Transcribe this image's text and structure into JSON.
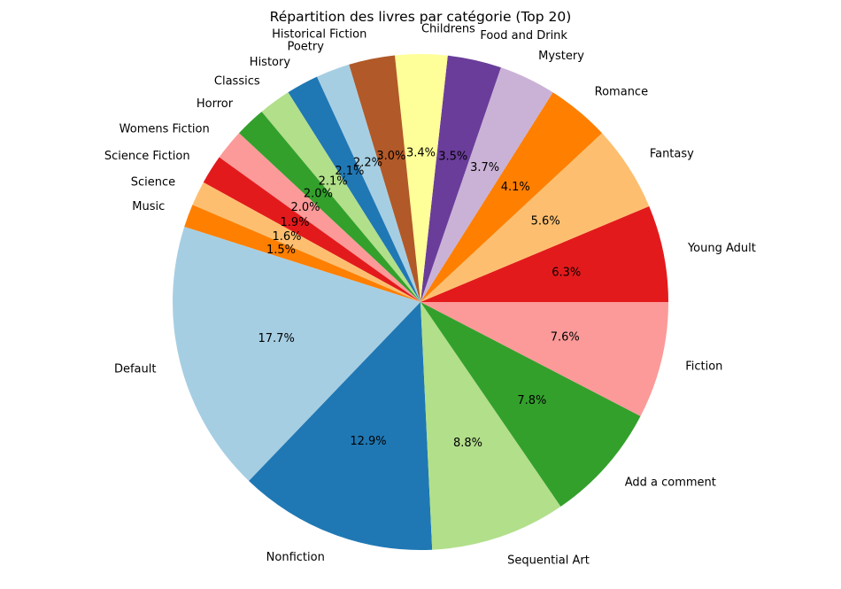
{
  "chart_data": {
    "type": "pie",
    "title": "Répartition des livres par catégorie (Top 20)",
    "start_angle_deg": 0,
    "direction": "counterclockwise",
    "slices": [
      {
        "label": "Young Adult",
        "value": 6.3,
        "pct_label": "6.3%",
        "color": "#e31a1c"
      },
      {
        "label": "Fantasy",
        "value": 5.6,
        "pct_label": "5.6%",
        "color": "#fdbf6f"
      },
      {
        "label": "Romance",
        "value": 4.1,
        "pct_label": "4.1%",
        "color": "#ff7f00"
      },
      {
        "label": "Mystery",
        "value": 3.7,
        "pct_label": "3.7%",
        "color": "#cab2d6"
      },
      {
        "label": "Food and Drink",
        "value": 3.5,
        "pct_label": "3.5%",
        "color": "#6a3d9a"
      },
      {
        "label": "Childrens",
        "value": 3.4,
        "pct_label": "3.4%",
        "color": "#ffff99"
      },
      {
        "label": "Historical Fiction",
        "value": 3.0,
        "pct_label": "3.0%",
        "color": "#b15928"
      },
      {
        "label": "Poetry",
        "value": 2.2,
        "pct_label": "2.2%",
        "color": "#a6cee3"
      },
      {
        "label": "History",
        "value": 2.1,
        "pct_label": "2.1%",
        "color": "#1f78b4"
      },
      {
        "label": "Classics",
        "value": 2.1,
        "pct_label": "2.1%",
        "color": "#b2df8a"
      },
      {
        "label": "Horror",
        "value": 2.0,
        "pct_label": "2.0%",
        "color": "#33a02c"
      },
      {
        "label": "Womens Fiction",
        "value": 2.0,
        "pct_label": "2.0%",
        "color": "#fb9a99"
      },
      {
        "label": "Science Fiction",
        "value": 1.9,
        "pct_label": "1.9%",
        "color": "#e31a1c"
      },
      {
        "label": "Science",
        "value": 1.6,
        "pct_label": "1.6%",
        "color": "#fdbf6f"
      },
      {
        "label": "Music",
        "value": 1.5,
        "pct_label": "1.5%",
        "color": "#ff7f00"
      },
      {
        "label": "Default",
        "value": 17.7,
        "pct_label": "17.7%",
        "color": "#a6cee3"
      },
      {
        "label": "Nonfiction",
        "value": 12.9,
        "pct_label": "12.9%",
        "color": "#1f78b4"
      },
      {
        "label": "Sequential Art",
        "value": 8.8,
        "pct_label": "8.8%",
        "color": "#b2df8a"
      },
      {
        "label": "Add a comment",
        "value": 7.8,
        "pct_label": "7.8%",
        "color": "#33a02c"
      },
      {
        "label": "Fiction",
        "value": 7.6,
        "pct_label": "7.6%",
        "color": "#fb9a99"
      }
    ]
  }
}
